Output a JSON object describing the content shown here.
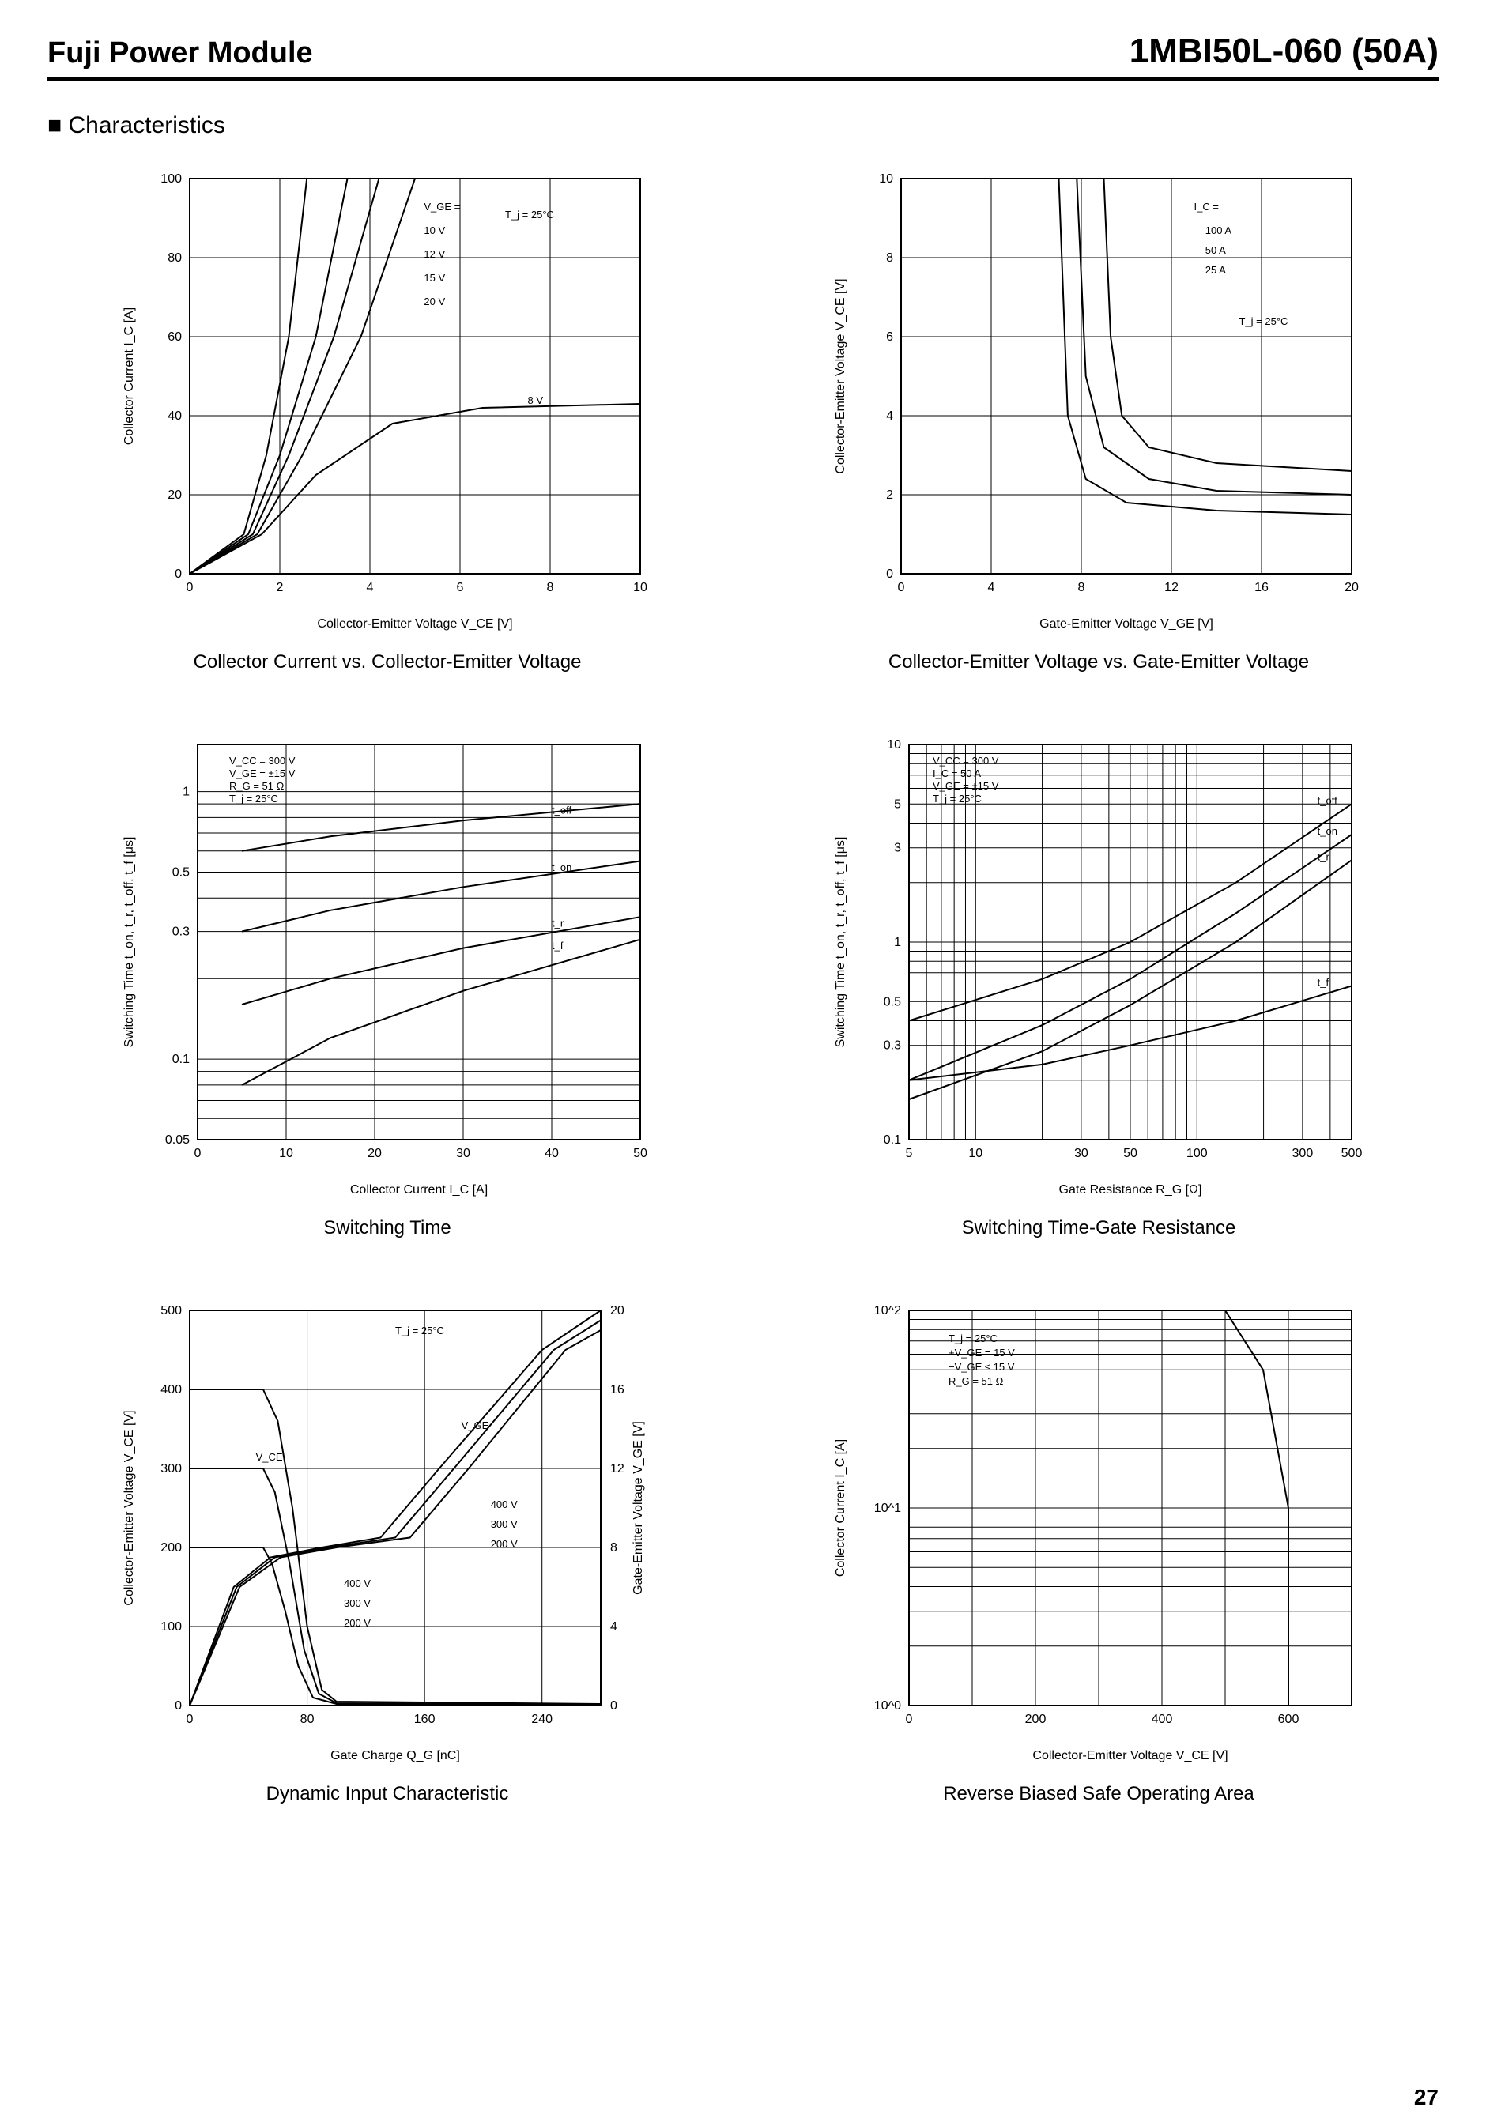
{
  "header": {
    "left": "Fuji Power Module",
    "right": "1MBI50L-060  (50A)"
  },
  "section_title": "Characteristics",
  "page_number": "27",
  "charts": {
    "c1": {
      "type": "line",
      "caption": "Collector Current vs. Collector-Emitter Voltage",
      "xlabel": "Collector-Emitter Voltage V_CE [V]",
      "ylabel": "Collector Current I_C [A]",
      "xlim": [
        0,
        10
      ],
      "xtick_step": 2,
      "ylim": [
        0,
        100
      ],
      "ytick_step": 20,
      "background_color": "#ffffff",
      "grid_color": "#000000",
      "line_width": 2,
      "condition_label": "T_j = 25°C",
      "legend_title": "V_GE =",
      "series": [
        {
          "name": "10 V",
          "pts": [
            [
              0,
              0
            ],
            [
              1.2,
              10
            ],
            [
              1.7,
              30
            ],
            [
              2.2,
              60
            ],
            [
              2.6,
              100
            ]
          ]
        },
        {
          "name": "12 V",
          "pts": [
            [
              0,
              0
            ],
            [
              1.3,
              10
            ],
            [
              2.0,
              30
            ],
            [
              2.8,
              60
            ],
            [
              3.5,
              100
            ]
          ]
        },
        {
          "name": "15 V",
          "pts": [
            [
              0,
              0
            ],
            [
              1.4,
              10
            ],
            [
              2.2,
              30
            ],
            [
              3.2,
              60
            ],
            [
              4.2,
              100
            ]
          ]
        },
        {
          "name": "20 V",
          "pts": [
            [
              0,
              0
            ],
            [
              1.5,
              10
            ],
            [
              2.5,
              30
            ],
            [
              3.8,
              60
            ],
            [
              5.0,
              100
            ]
          ]
        },
        {
          "name": "8 V",
          "pts": [
            [
              0,
              0
            ],
            [
              1.6,
              10
            ],
            [
              2.8,
              25
            ],
            [
              4.5,
              38
            ],
            [
              6.5,
              42
            ],
            [
              10,
              43
            ]
          ]
        }
      ]
    },
    "c2": {
      "type": "line",
      "caption": "Collector-Emitter Voltage vs. Gate-Emitter Voltage",
      "xlabel": "Gate-Emitter Voltage V_GE [V]",
      "ylabel": "Collector-Emitter Voltage V_CE [V]",
      "xlim": [
        0,
        20
      ],
      "xtick_step": 4,
      "ylim": [
        0,
        10
      ],
      "ytick_step": 2,
      "condition_label": "T_j = 25°C",
      "legend_title": "I_C =",
      "series": [
        {
          "name": "100 A",
          "pts": [
            [
              9.0,
              10
            ],
            [
              9.3,
              6
            ],
            [
              9.8,
              4
            ],
            [
              11,
              3.2
            ],
            [
              14,
              2.8
            ],
            [
              20,
              2.6
            ]
          ]
        },
        {
          "name": "50 A",
          "pts": [
            [
              7.8,
              10
            ],
            [
              8.2,
              5
            ],
            [
              9,
              3.2
            ],
            [
              11,
              2.4
            ],
            [
              14,
              2.1
            ],
            [
              20,
              2.0
            ]
          ]
        },
        {
          "name": "25 A",
          "pts": [
            [
              7.0,
              10
            ],
            [
              7.4,
              4
            ],
            [
              8.2,
              2.4
            ],
            [
              10,
              1.8
            ],
            [
              14,
              1.6
            ],
            [
              20,
              1.5
            ]
          ]
        }
      ]
    },
    "c3": {
      "type": "line-logy",
      "caption": "Switching Time",
      "xlabel": "Collector Current I_C [A]",
      "ylabel": "Switching Time t_on, t_r, t_off, t_f [μs]",
      "xlim": [
        0,
        50
      ],
      "xtick_step": 10,
      "ylim": [
        0.05,
        1.5
      ],
      "yticks": [
        0.05,
        0.1,
        0.3,
        0.5,
        1.0
      ],
      "conditions": [
        "V_CC = 300 V",
        "V_GE = ±15 V",
        "R_G = 51 Ω",
        "T_j = 25°C"
      ],
      "series": [
        {
          "name": "t_off",
          "pts": [
            [
              5,
              0.6
            ],
            [
              15,
              0.68
            ],
            [
              30,
              0.78
            ],
            [
              50,
              0.9
            ]
          ]
        },
        {
          "name": "t_on",
          "pts": [
            [
              5,
              0.3
            ],
            [
              15,
              0.36
            ],
            [
              30,
              0.44
            ],
            [
              50,
              0.55
            ]
          ]
        },
        {
          "name": "t_r",
          "pts": [
            [
              5,
              0.16
            ],
            [
              15,
              0.2
            ],
            [
              30,
              0.26
            ],
            [
              50,
              0.34
            ]
          ]
        },
        {
          "name": "t_f",
          "pts": [
            [
              5,
              0.08
            ],
            [
              15,
              0.12
            ],
            [
              30,
              0.18
            ],
            [
              50,
              0.28
            ]
          ]
        }
      ]
    },
    "c4": {
      "type": "line-loglog",
      "caption": "Switching Time-Gate Resistance",
      "xlabel": "Gate Resistance R_G [Ω]",
      "ylabel": "Switching Time t_on, t_r, t_off, t_f [μs]",
      "xlim": [
        5,
        500
      ],
      "xticks": [
        5,
        10,
        30,
        50,
        100,
        300,
        500
      ],
      "ylim": [
        0.1,
        10
      ],
      "yticks": [
        0.1,
        0.3,
        0.5,
        1,
        3,
        5,
        10
      ],
      "conditions": [
        "V_CC = 300 V",
        "I_C = 50 A",
        "V_GE = ±15 V",
        "T_j = 25°C"
      ],
      "series": [
        {
          "name": "t_off",
          "pts": [
            [
              5,
              0.4
            ],
            [
              20,
              0.65
            ],
            [
              50,
              1.0
            ],
            [
              150,
              2.0
            ],
            [
              500,
              5.0
            ]
          ]
        },
        {
          "name": "t_on",
          "pts": [
            [
              5,
              0.2
            ],
            [
              20,
              0.38
            ],
            [
              50,
              0.65
            ],
            [
              150,
              1.4
            ],
            [
              500,
              3.5
            ]
          ]
        },
        {
          "name": "t_r",
          "pts": [
            [
              5,
              0.16
            ],
            [
              20,
              0.28
            ],
            [
              50,
              0.48
            ],
            [
              150,
              1.0
            ],
            [
              500,
              2.6
            ]
          ]
        },
        {
          "name": "t_f",
          "pts": [
            [
              5,
              0.2
            ],
            [
              20,
              0.24
            ],
            [
              50,
              0.3
            ],
            [
              150,
              0.4
            ],
            [
              500,
              0.6
            ]
          ]
        }
      ]
    },
    "c5": {
      "type": "line-dual-y",
      "caption": "Dynamic Input Characteristic",
      "xlabel": "Gate Charge Q_G [nC]",
      "ylabel": "Collector-Emitter Voltage V_CE [V]",
      "ylabel2": "Gate-Emitter Voltage V_GE [V]",
      "xlim": [
        0,
        280
      ],
      "xtick_step": 80,
      "ylim": [
        0,
        500
      ],
      "ytick_step": 100,
      "ylim2": [
        0,
        20
      ],
      "ytick2_step": 4,
      "condition_label": "T_j = 25°C",
      "curve_labels": {
        "vce": "V_CE",
        "vge": "V_GE"
      },
      "vce_series": [
        {
          "name": "400 V",
          "pts": [
            [
              0,
              400
            ],
            [
              50,
              400
            ],
            [
              60,
              360
            ],
            [
              70,
              250
            ],
            [
              80,
              100
            ],
            [
              90,
              20
            ],
            [
              100,
              5
            ],
            [
              280,
              2
            ]
          ]
        },
        {
          "name": "300 V",
          "pts": [
            [
              0,
              300
            ],
            [
              50,
              300
            ],
            [
              58,
              270
            ],
            [
              68,
              180
            ],
            [
              78,
              70
            ],
            [
              88,
              15
            ],
            [
              100,
              3
            ],
            [
              280,
              1
            ]
          ]
        },
        {
          "name": "200 V",
          "pts": [
            [
              0,
              200
            ],
            [
              50,
              200
            ],
            [
              56,
              180
            ],
            [
              65,
              120
            ],
            [
              74,
              50
            ],
            [
              84,
              10
            ],
            [
              100,
              2
            ],
            [
              280,
              0.5
            ]
          ]
        }
      ],
      "vge_series": [
        {
          "name": "200 V",
          "pts": [
            [
              0,
              0
            ],
            [
              30,
              6
            ],
            [
              55,
              7.5
            ],
            [
              90,
              8.0
            ],
            [
              130,
              8.5
            ],
            [
              170,
              12
            ],
            [
              240,
              18
            ],
            [
              280,
              20
            ]
          ]
        },
        {
          "name": "300 V",
          "pts": [
            [
              0,
              0
            ],
            [
              32,
              6
            ],
            [
              58,
              7.5
            ],
            [
              95,
              8.0
            ],
            [
              140,
              8.5
            ],
            [
              180,
              12
            ],
            [
              248,
              18
            ],
            [
              280,
              19.5
            ]
          ]
        },
        {
          "name": "400 V",
          "pts": [
            [
              0,
              0
            ],
            [
              34,
              6
            ],
            [
              62,
              7.5
            ],
            [
              100,
              8.0
            ],
            [
              150,
              8.5
            ],
            [
              190,
              12
            ],
            [
              256,
              18
            ],
            [
              280,
              19
            ]
          ]
        }
      ]
    },
    "c6": {
      "type": "line-logy",
      "caption": "Reverse Biased Safe Operating Area",
      "xlabel": "Collector-Emitter Voltage V_CE [V]",
      "ylabel": "Collector Current I_C [A]",
      "xlim": [
        0,
        700
      ],
      "xtick_step": 200,
      "ylim": [
        1,
        100
      ],
      "yticks_pow": [
        0,
        1,
        2
      ],
      "conditions": [
        "T_j = 25°C",
        "+V_GE = 15 V",
        "−V_GE ≤ 15 V",
        "R_G = 51 Ω"
      ],
      "boundary": [
        [
          0,
          100
        ],
        [
          500,
          100
        ],
        [
          560,
          50
        ],
        [
          600,
          10
        ],
        [
          600,
          1
        ]
      ]
    }
  }
}
